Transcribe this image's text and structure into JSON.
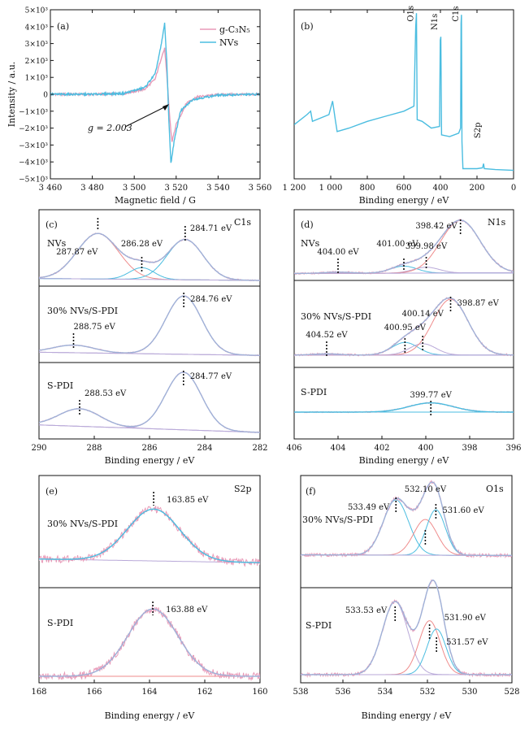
{
  "chart_data": [
    {
      "id": "a",
      "type": "line",
      "panel_label": "(a)",
      "xlabel": "Magnetic field / G",
      "ylabel": "Intensity / a.u.",
      "xlim": [
        3460,
        3560
      ],
      "ylim": [
        -5000,
        5000
      ],
      "xticks": [
        3460,
        3480,
        3500,
        3520,
        3540,
        3560
      ],
      "xtick_labels": [
        "3 460",
        "3 480",
        "3 500",
        "3 520",
        "3 540",
        "3 560"
      ],
      "yticks": [
        5000,
        4000,
        3000,
        2000,
        1000,
        0,
        -1000,
        -2000,
        -3000,
        -4000,
        -5000
      ],
      "ytick_labels": [
        "5×10³",
        "4×10³",
        "3×10³",
        "2×10³",
        "1×10³",
        "0",
        "−1×10³",
        "−2×10³",
        "−3×10³",
        "−4×10³",
        "−5×10³"
      ],
      "legend_position": "top-right",
      "annotation": "g = 2.003",
      "series": [
        {
          "name": "g-C₃N₅",
          "color": "#e89ab8",
          "points": [
            [
              3460,
              0
            ],
            [
              3480,
              0
            ],
            [
              3495,
              40
            ],
            [
              3505,
              300
            ],
            [
              3510,
              900
            ],
            [
              3513,
              2200
            ],
            [
              3514.5,
              2700
            ],
            [
              3515.5,
              1200
            ],
            [
              3517,
              -1500
            ],
            [
              3518,
              -2800
            ],
            [
              3520,
              -1800
            ],
            [
              3525,
              -500
            ],
            [
              3530,
              -150
            ],
            [
              3540,
              -20
            ],
            [
              3560,
              0
            ]
          ]
        },
        {
          "name": "NVs",
          "color": "#4bbde0",
          "points": [
            [
              3460,
              0
            ],
            [
              3480,
              0
            ],
            [
              3495,
              50
            ],
            [
              3505,
              400
            ],
            [
              3510,
              1200
            ],
            [
              3513,
              3000
            ],
            [
              3514.5,
              4200
            ],
            [
              3515.5,
              2000
            ],
            [
              3516.5,
              -1500
            ],
            [
              3517.5,
              -4100
            ],
            [
              3519,
              -2800
            ],
            [
              3522,
              -1000
            ],
            [
              3528,
              -300
            ],
            [
              3540,
              -50
            ],
            [
              3560,
              0
            ]
          ]
        }
      ]
    },
    {
      "id": "b",
      "type": "line",
      "panel_label": "(b)",
      "xlabel": "Binding energy / eV",
      "xlim": [
        1200,
        0
      ],
      "xticks": [
        1200,
        1000,
        800,
        600,
        400,
        200,
        0
      ],
      "xtick_labels": [
        "1 200",
        "1 000",
        "800",
        "600",
        "400",
        "200",
        "0"
      ],
      "peak_labels": [
        {
          "text": "O1s",
          "x": 531
        },
        {
          "text": "N1s",
          "x": 399
        },
        {
          "text": "C1s",
          "x": 285
        },
        {
          "text": "S2p",
          "x": 164
        }
      ],
      "series": [
        {
          "name": "survey",
          "color": "#4bbde0",
          "points": [
            [
              1200,
              0.32
            ],
            [
              1130,
              0.38
            ],
            [
              1110,
              0.4
            ],
            [
              1100,
              0.34
            ],
            [
              1010,
              0.38
            ],
            [
              990,
              0.46
            ],
            [
              975,
              0.35
            ],
            [
              965,
              0.28
            ],
            [
              900,
              0.3
            ],
            [
              800,
              0.34
            ],
            [
              700,
              0.37
            ],
            [
              600,
              0.4
            ],
            [
              545,
              0.43
            ],
            [
              535,
              0.9
            ],
            [
              531,
              0.98
            ],
            [
              527,
              0.35
            ],
            [
              500,
              0.34
            ],
            [
              450,
              0.3
            ],
            [
              405,
              0.31
            ],
            [
              401,
              0.82
            ],
            [
              398,
              0.84
            ],
            [
              394,
              0.26
            ],
            [
              350,
              0.25
            ],
            [
              300,
              0.27
            ],
            [
              290,
              0.3
            ],
            [
              287,
              0.92
            ],
            [
              285,
              0.97
            ],
            [
              282,
              0.22
            ],
            [
              277,
              0.06
            ],
            [
              200,
              0.06
            ],
            [
              170,
              0.065
            ],
            [
              164,
              0.09
            ],
            [
              160,
              0.06
            ],
            [
              100,
              0.055
            ],
            [
              0,
              0.05
            ]
          ]
        }
      ]
    },
    {
      "id": "c",
      "type": "line",
      "panel_label": "(c)",
      "element_label": "C1s",
      "xlabel": "Binding energy / eV",
      "xlim": [
        290,
        282
      ],
      "xticks": [
        290,
        288,
        286,
        284,
        282
      ],
      "xtick_labels": [
        "290",
        "288",
        "286",
        "284",
        "282"
      ],
      "subpanels": [
        {
          "name": "NVs",
          "peaks": [
            {
              "center": 287.87,
              "label": "287.87 eV"
            },
            {
              "center": 286.28,
              "label": "286.28 eV"
            },
            {
              "center": 284.71,
              "label": "284.71 eV"
            }
          ]
        },
        {
          "name": "30% NVs/S-PDI",
          "peaks": [
            {
              "center": 288.75,
              "label": "288.75 eV"
            },
            {
              "center": 284.76,
              "label": "284.76 eV"
            }
          ]
        },
        {
          "name": "S-PDI",
          "peaks": [
            {
              "center": 288.53,
              "label": "288.53 eV"
            },
            {
              "center": 284.77,
              "label": "284.77 eV"
            }
          ]
        }
      ]
    },
    {
      "id": "d",
      "type": "line",
      "panel_label": "(d)",
      "element_label": "N1s",
      "xlabel": "Binding energy / eV",
      "xlim": [
        406,
        396
      ],
      "xticks": [
        406,
        404,
        402,
        400,
        398,
        396
      ],
      "xtick_labels": [
        "406",
        "404",
        "402",
        "400",
        "398",
        "396"
      ],
      "subpanels": [
        {
          "name": "NVs",
          "peaks": [
            {
              "center": 404.0,
              "label": "404.00 eV"
            },
            {
              "center": 401.0,
              "label": "401.00 eV"
            },
            {
              "center": 399.98,
              "label": "399.98 eV"
            },
            {
              "center": 398.42,
              "label": "398.42 eV"
            }
          ]
        },
        {
          "name": "30% NVs/S-PDI",
          "peaks": [
            {
              "center": 404.52,
              "label": "404.52 eV"
            },
            {
              "center": 400.95,
              "label": "400.95 eV"
            },
            {
              "center": 400.14,
              "label": "400.14 eV"
            },
            {
              "center": 398.87,
              "label": "398.87 eV"
            }
          ]
        },
        {
          "name": "S-PDI",
          "peaks": [
            {
              "center": 399.77,
              "label": "399.77 eV"
            }
          ]
        }
      ]
    },
    {
      "id": "e",
      "type": "line",
      "panel_label": "(e)",
      "element_label": "S2p",
      "xlabel": "Binding energy / eV",
      "xlim": [
        168,
        160
      ],
      "xticks": [
        168,
        166,
        164,
        162,
        160
      ],
      "xtick_labels": [
        "168",
        "166",
        "164",
        "162",
        "160"
      ],
      "subpanels": [
        {
          "name": "30% NVs/S-PDI",
          "peaks": [
            {
              "center": 163.85,
              "label": "163.85 eV"
            }
          ]
        },
        {
          "name": "S-PDI",
          "peaks": [
            {
              "center": 163.88,
              "label": "163.88 eV"
            }
          ]
        }
      ]
    },
    {
      "id": "f",
      "type": "line",
      "panel_label": "(f)",
      "element_label": "O1s",
      "xlabel": "Binding energy / eV",
      "xlim": [
        538,
        528
      ],
      "xticks": [
        538,
        536,
        534,
        532,
        530,
        528
      ],
      "xtick_labels": [
        "538",
        "536",
        "534",
        "532",
        "530",
        "528"
      ],
      "subpanels": [
        {
          "name": "30% NVs/S-PDI",
          "peaks": [
            {
              "center": 533.49,
              "label": "533.49 eV"
            },
            {
              "center": 532.1,
              "label": "532.10 eV"
            },
            {
              "center": 531.6,
              "label": "531.60 eV"
            }
          ]
        },
        {
          "name": "S-PDI",
          "peaks": [
            {
              "center": 533.53,
              "label": "533.53 eV"
            },
            {
              "center": 531.9,
              "label": "531.90 eV"
            },
            {
              "center": 531.57,
              "label": "531.57 eV"
            }
          ]
        }
      ]
    }
  ],
  "colors": {
    "raw": "#e89ab8",
    "fit": "#9fb2d8",
    "comp_blue": "#4bbde0",
    "comp_red": "#ef8b8b",
    "comp_purple": "#b8a8d8",
    "baseline": "#4bbde0"
  }
}
